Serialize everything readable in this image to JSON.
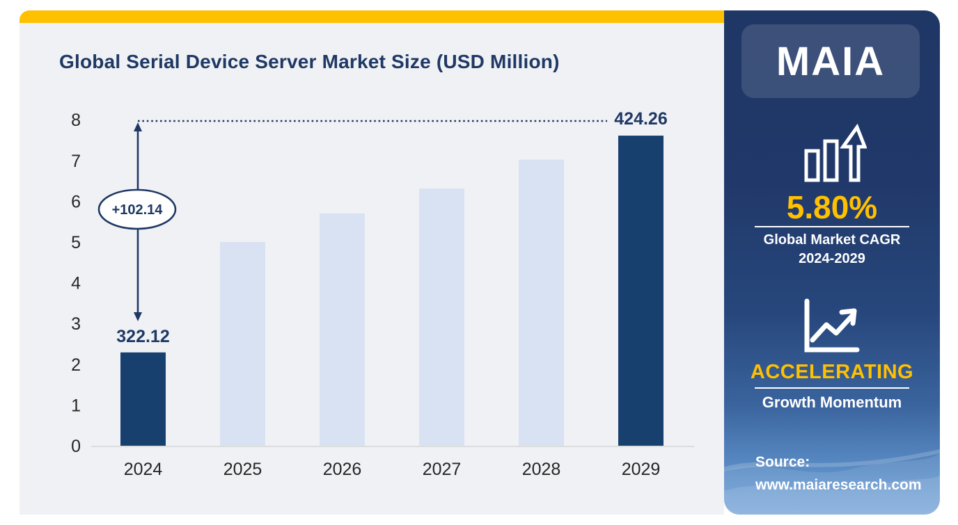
{
  "chart_card": {
    "accent_bar_color": "#ffc000",
    "background": "#eff1f5"
  },
  "chart_data": {
    "type": "bar",
    "title": "Global Serial Device Server Market Size (USD Million)",
    "categories": [
      "2024",
      "2025",
      "2026",
      "2027",
      "2028",
      "2029"
    ],
    "values_axis_units": [
      2.29,
      5.0,
      5.7,
      6.31,
      7.02,
      7.61
    ],
    "bar_colors": [
      "#17406f",
      "#d9e2f3",
      "#d9e2f3",
      "#d9e2f3",
      "#d9e2f3",
      "#17406f"
    ],
    "labeled_values": {
      "2024": 322.12,
      "2029": 424.26
    },
    "ylim": [
      0,
      8
    ],
    "ytick_interval": 1,
    "yticks": [
      0,
      1,
      2,
      3,
      4,
      5,
      6,
      7,
      8
    ],
    "grid": false,
    "legend": "none",
    "annotations": {
      "start_value_label": "322.12",
      "end_value_label": "424.26",
      "delta_label": "+102.14"
    },
    "colors": {
      "annotation_navy": "#1f3864",
      "axis_text": "#262626",
      "baseline": "#d6d6d6"
    }
  },
  "sidebar": {
    "logo_text": "MAIA",
    "cagr_value": "5.80%",
    "cagr_caption_line1": "Global Market CAGR",
    "cagr_caption_line2": "2024-2029",
    "momentum_value": "ACCELERATING",
    "momentum_caption": "Growth Momentum",
    "source_label": "Source:",
    "source_url": "www.maiaresearch.com",
    "colors": {
      "gold": "#ffc000",
      "navy_top": "#1f3765",
      "blue_bottom": "#74a4d8"
    }
  }
}
